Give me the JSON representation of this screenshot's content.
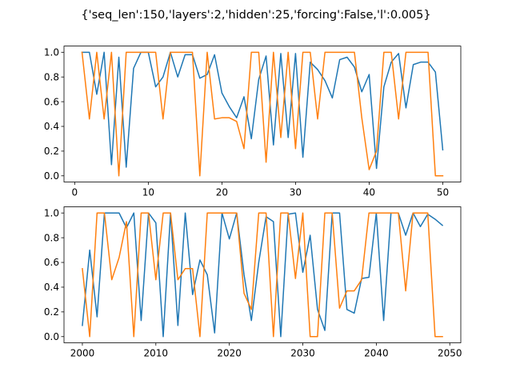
{
  "figure": {
    "suptitle": "{'seq_len':150,'layers':2,'hidden':25,'forcing':False,'l':0.005}"
  },
  "chart_data": [
    {
      "type": "line",
      "xlim": [
        -1.45,
        52.45
      ],
      "ylim": [
        -0.05,
        1.05
      ],
      "xticks": [
        0,
        10,
        20,
        30,
        40,
        50
      ],
      "yticks": [
        0.0,
        0.2,
        0.4,
        0.6,
        0.8,
        1.0
      ],
      "grid": false,
      "x": [
        1,
        2,
        3,
        4,
        5,
        6,
        7,
        8,
        9,
        10,
        11,
        12,
        13,
        14,
        15,
        16,
        17,
        18,
        19,
        20,
        21,
        22,
        23,
        24,
        25,
        26,
        27,
        28,
        29,
        30,
        31,
        32,
        33,
        34,
        35,
        36,
        37,
        38,
        39,
        40,
        41,
        42,
        43,
        44,
        45,
        46,
        47,
        48,
        49,
        50
      ],
      "series": [
        {
          "color": "#1f77b4",
          "values": [
            1.0,
            1.0,
            0.66,
            1.0,
            0.09,
            0.96,
            0.07,
            0.87,
            1.0,
            1.0,
            0.72,
            0.8,
            1.0,
            0.8,
            0.98,
            0.98,
            0.79,
            0.82,
            0.98,
            0.67,
            0.56,
            0.47,
            0.64,
            0.3,
            0.78,
            0.97,
            0.25,
            0.99,
            0.31,
            0.99,
            0.15,
            0.92,
            0.86,
            0.77,
            0.63,
            0.94,
            0.96,
            0.88,
            0.68,
            0.82,
            0.06,
            0.72,
            0.92,
            0.99,
            0.55,
            0.9,
            0.92,
            0.92,
            0.84,
            0.21
          ]
        },
        {
          "color": "#ff7f0e",
          "values": [
            1.0,
            0.46,
            1.0,
            0.46,
            1.0,
            0.0,
            1.0,
            1.0,
            1.0,
            1.0,
            1.0,
            0.46,
            1.0,
            1.0,
            1.0,
            1.0,
            0.0,
            1.0,
            0.46,
            0.47,
            0.47,
            0.44,
            0.22,
            1.0,
            1.0,
            0.11,
            1.0,
            0.31,
            1.0,
            0.22,
            1.0,
            1.0,
            0.46,
            1.0,
            1.0,
            1.0,
            1.0,
            1.0,
            0.47,
            0.05,
            0.2,
            1.0,
            1.0,
            0.46,
            1.0,
            1.0,
            1.0,
            1.0,
            0.0,
            0.0
          ]
        }
      ]
    },
    {
      "type": "line",
      "xlim": [
        1997.5,
        2051.5
      ],
      "ylim": [
        -0.05,
        1.05
      ],
      "xticks": [
        2000,
        2010,
        2020,
        2030,
        2040,
        2050
      ],
      "yticks": [
        0.0,
        0.2,
        0.4,
        0.6,
        0.8,
        1.0
      ],
      "grid": false,
      "x": [
        2000,
        2001,
        2002,
        2003,
        2004,
        2005,
        2006,
        2007,
        2008,
        2009,
        2010,
        2011,
        2012,
        2013,
        2014,
        2015,
        2016,
        2017,
        2018,
        2019,
        2020,
        2021,
        2022,
        2023,
        2024,
        2025,
        2026,
        2027,
        2028,
        2029,
        2030,
        2031,
        2032,
        2033,
        2034,
        2035,
        2036,
        2037,
        2038,
        2039,
        2040,
        2041,
        2042,
        2043,
        2044,
        2045,
        2046,
        2047,
        2048,
        2049
      ],
      "series": [
        {
          "color": "#1f77b4",
          "values": [
            0.09,
            0.7,
            0.16,
            1.0,
            1.0,
            1.0,
            0.88,
            1.0,
            0.13,
            1.0,
            0.92,
            0.0,
            1.0,
            0.09,
            1.0,
            0.34,
            0.62,
            0.5,
            0.03,
            1.0,
            0.79,
            1.0,
            0.5,
            0.13,
            0.6,
            0.97,
            0.93,
            0.0,
            0.99,
            1.0,
            0.52,
            0.82,
            0.22,
            0.05,
            1.0,
            1.0,
            0.22,
            0.19,
            0.47,
            0.48,
            1.0,
            0.13,
            1.0,
            1.0,
            0.82,
            1.0,
            0.89,
            0.99,
            0.95,
            0.9
          ]
        },
        {
          "color": "#ff7f0e",
          "values": [
            0.55,
            0.0,
            1.0,
            1.0,
            0.46,
            0.64,
            0.93,
            0.0,
            1.0,
            1.0,
            0.46,
            1.0,
            1.0,
            0.46,
            0.55,
            0.55,
            0.0,
            1.0,
            1.0,
            1.0,
            1.0,
            1.0,
            0.35,
            0.22,
            1.0,
            1.0,
            0.0,
            1.0,
            1.0,
            0.47,
            1.0,
            0.0,
            0.0,
            1.0,
            1.0,
            0.23,
            0.37,
            0.37,
            0.46,
            1.0,
            1.0,
            1.0,
            1.0,
            1.0,
            0.37,
            1.0,
            1.0,
            1.0,
            0.0,
            0.0
          ]
        }
      ]
    }
  ]
}
